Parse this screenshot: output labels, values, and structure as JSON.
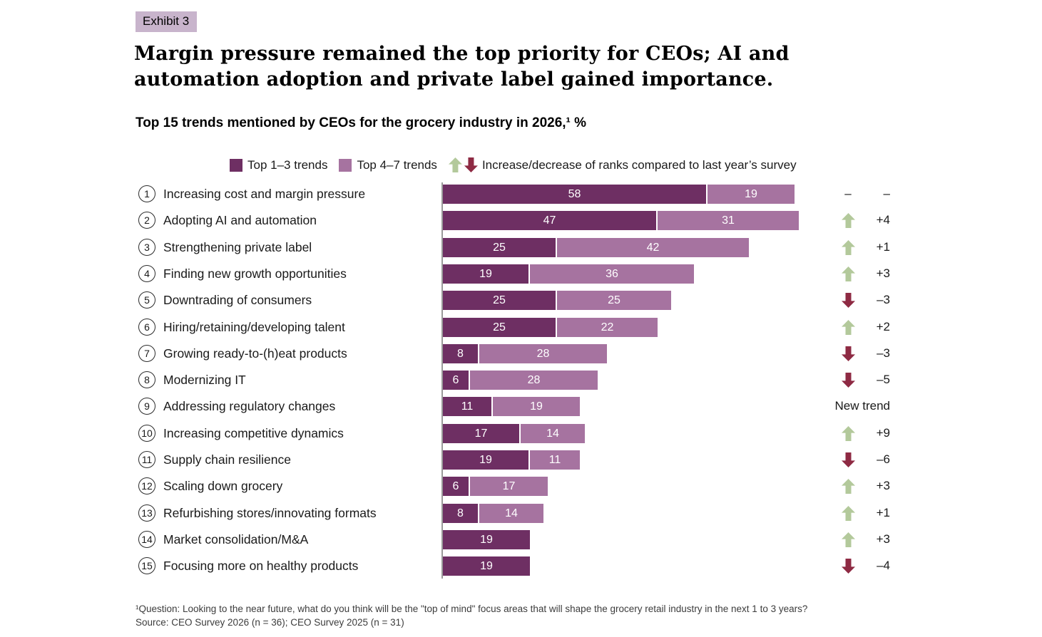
{
  "exhibit_label": "Exhibit 3",
  "title": "Margin pressure remained the top priority for CEOs; AI and\nautomation adoption and private label gained importance.",
  "subtitle": "Top 15 trends mentioned by CEOs for the grocery industry in 2026,¹ %",
  "legend": {
    "top13_label": "Top 1–3 trends",
    "top47_label": "Top 4–7 trends",
    "arrows_label": "Increase/decrease of ranks compared to last year’s survey"
  },
  "colors": {
    "dark_purple": "#6e2f63",
    "light_purple": "#a673a0",
    "up_green": "#b3c99b",
    "down_red": "#8e2a43",
    "exhibit_badge_bg": "#c8b4cc",
    "axis_gray": "#9a9a9a"
  },
  "chart_data": {
    "type": "bar",
    "orientation": "horizontal",
    "unit": "%",
    "xlim": [
      0,
      78
    ],
    "grid": false,
    "legend_position": "top",
    "series_names": [
      "Top 1–3 trends",
      "Top 4–7 trends"
    ],
    "rows": [
      {
        "rank": 1,
        "label": "Increasing cost and margin pressure",
        "top13": 58,
        "top47": 19,
        "change": null,
        "change_label": "–",
        "direction": "none"
      },
      {
        "rank": 2,
        "label": "Adopting AI and automation",
        "top13": 47,
        "top47": 31,
        "change": 4,
        "change_label": "+4",
        "direction": "up"
      },
      {
        "rank": 3,
        "label": "Strengthening private label",
        "top13": 25,
        "top47": 42,
        "change": 1,
        "change_label": "+1",
        "direction": "up"
      },
      {
        "rank": 4,
        "label": "Finding new growth opportunities",
        "top13": 19,
        "top47": 36,
        "change": 3,
        "change_label": "+3",
        "direction": "up"
      },
      {
        "rank": 5,
        "label": "Downtrading of consumers",
        "top13": 25,
        "top47": 25,
        "change": -3,
        "change_label": "–3",
        "direction": "down"
      },
      {
        "rank": 6,
        "label": "Hiring/retaining/developing talent",
        "top13": 25,
        "top47": 22,
        "change": 2,
        "change_label": "+2",
        "direction": "up"
      },
      {
        "rank": 7,
        "label": "Growing ready-to-(h)eat products",
        "top13": 8,
        "top47": 28,
        "change": -3,
        "change_label": "–3",
        "direction": "down"
      },
      {
        "rank": 8,
        "label": "Modernizing IT",
        "top13": 6,
        "top47": 28,
        "change": -5,
        "change_label": "–5",
        "direction": "down"
      },
      {
        "rank": 9,
        "label": "Addressing regulatory changes",
        "top13": 11,
        "top47": 19,
        "change": null,
        "change_label": "New trend",
        "direction": "new"
      },
      {
        "rank": 10,
        "label": "Increasing competitive dynamics",
        "top13": 17,
        "top47": 14,
        "change": 9,
        "change_label": "+9",
        "direction": "up"
      },
      {
        "rank": 11,
        "label": "Supply chain resilience",
        "top13": 19,
        "top47": 11,
        "change": -6,
        "change_label": "–6",
        "direction": "down"
      },
      {
        "rank": 12,
        "label": "Scaling down grocery",
        "top13": 6,
        "top47": 17,
        "change": 3,
        "change_label": "+3",
        "direction": "up"
      },
      {
        "rank": 13,
        "label": "Refurbishing stores/innovating formats",
        "top13": 8,
        "top47": 14,
        "change": 1,
        "change_label": "+1",
        "direction": "up"
      },
      {
        "rank": 14,
        "label": "Market consolidation/M&A",
        "top13": 19,
        "top47": null,
        "change": 3,
        "change_label": "+3",
        "direction": "up"
      },
      {
        "rank": 15,
        "label": "Focusing more on healthy products",
        "top13": 19,
        "top47": null,
        "change": -4,
        "change_label": "–4",
        "direction": "down"
      }
    ]
  },
  "footnote": "¹Question: Looking to the near future, what do you think will be the \"top of mind\" focus areas that will shape the grocery retail industry in the next 1 to 3 years?",
  "source": "Source: CEO Survey 2026 (n = 36); CEO Survey 2025 (n = 31)"
}
